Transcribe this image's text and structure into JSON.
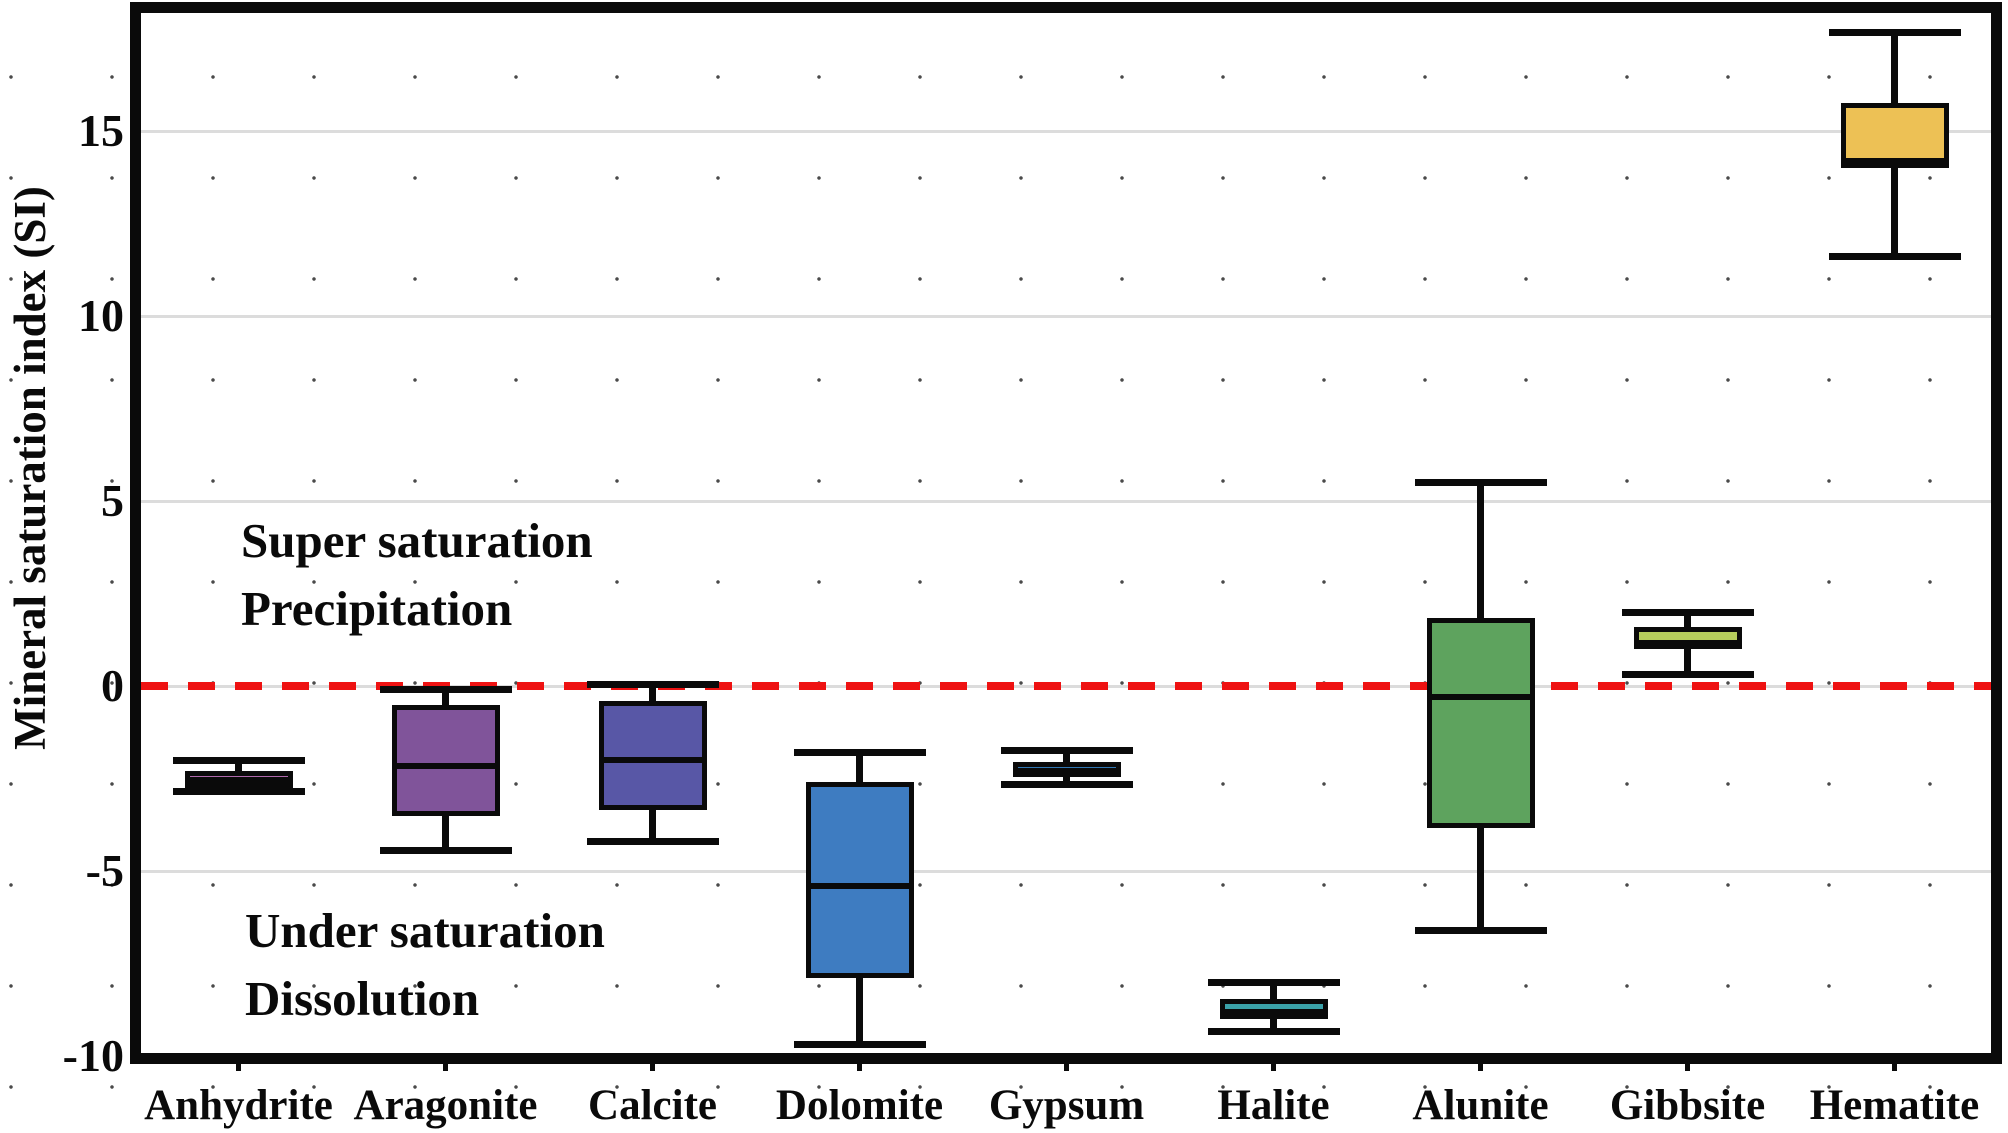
{
  "y_axis": {
    "title": "Mineral saturation index (SI)",
    "ticks": [
      {
        "label": "15",
        "value": 15
      },
      {
        "label": "10",
        "value": 10
      },
      {
        "label": "5",
        "value": 5
      },
      {
        "label": "0",
        "value": 0
      },
      {
        "label": "-5",
        "value": -5
      },
      {
        "label": "-10",
        "value": -10
      }
    ]
  },
  "annotations": {
    "super_line1": "Super saturation",
    "super_line2": "Precipitation",
    "under_line1": "Under saturation",
    "under_line2": "Dissolution"
  },
  "reference_line": {
    "value": 0,
    "color": "#ee1212",
    "style": "dashed"
  },
  "chart_data": {
    "type": "boxplot",
    "title": "",
    "xlabel": "",
    "ylabel": "Mineral saturation index (SI)",
    "ylim": [
      -10,
      18.2
    ],
    "gridline_values": [
      15,
      10,
      5,
      0,
      -5
    ],
    "grid": "light horizontal lines with sparse dotted background",
    "legend": "none",
    "categories": [
      "Anhydrite",
      "Aragonite",
      "Calcite",
      "Dolomite",
      "Gypsum",
      "Halite",
      "Alunite",
      "Gibbsite",
      "Hematite"
    ],
    "boxes": [
      {
        "label": "Anhydrite",
        "whisker_low": -2.85,
        "q1": -2.75,
        "median": -2.55,
        "q3": -2.3,
        "whisker_high": -2.0,
        "fill": "#AF68AC"
      },
      {
        "label": "Aragonite",
        "whisker_low": -4.45,
        "q1": -3.5,
        "median": -2.15,
        "q3": -0.5,
        "whisker_high": -0.1,
        "fill": "#80549A"
      },
      {
        "label": "Calcite",
        "whisker_low": -4.2,
        "q1": -3.35,
        "median": -2.0,
        "q3": -0.4,
        "whisker_high": 0.05,
        "fill": "#5857A6"
      },
      {
        "label": "Dolomite",
        "whisker_low": -9.7,
        "q1": -7.9,
        "median": -5.4,
        "q3": -2.6,
        "whisker_high": -1.8,
        "fill": "#3E7CC1"
      },
      {
        "label": "Gypsum",
        "whisker_low": -2.65,
        "q1": -2.45,
        "median": -2.3,
        "q3": -2.05,
        "whisker_high": -1.75,
        "fill": "#3178B4"
      },
      {
        "label": "Halite",
        "whisker_low": -9.35,
        "q1": -9.0,
        "median": -8.8,
        "q3": -8.45,
        "whisker_high": -8.0,
        "fill": "#3BA2A9"
      },
      {
        "label": "Alunite",
        "whisker_low": -6.6,
        "q1": -3.85,
        "median": -0.3,
        "q3": 1.85,
        "whisker_high": 5.5,
        "fill": "#5EA35E"
      },
      {
        "label": "Gibbsite",
        "whisker_low": 0.3,
        "q1": 1.0,
        "median": 1.15,
        "q3": 1.6,
        "whisker_high": 2.0,
        "fill": "#B6CD5C"
      },
      {
        "label": "Hematite",
        "whisker_low": 11.6,
        "q1": 14.0,
        "median": 14.2,
        "q3": 15.75,
        "whisker_high": 17.65,
        "fill": "#EDC155"
      }
    ]
  }
}
